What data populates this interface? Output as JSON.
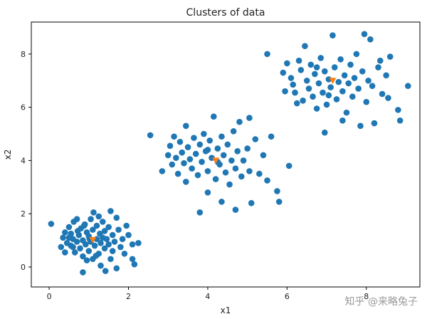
{
  "chart_data": {
    "type": "scatter",
    "title": "Clusters of data",
    "xlabel": "x1",
    "ylabel": "x2",
    "xlim": [
      -0.45,
      9.35
    ],
    "ylim": [
      -0.75,
      9.2
    ],
    "xticks": [
      0,
      2,
      4,
      6,
      8
    ],
    "yticks": [
      0,
      2,
      4,
      6,
      8
    ],
    "grid": false,
    "series": [
      {
        "marker": "circle",
        "color": "#1f77b4",
        "points": [
          [
            0.05,
            1.62
          ],
          [
            0.3,
            0.75
          ],
          [
            0.35,
            1.1
          ],
          [
            0.4,
            1.3
          ],
          [
            0.45,
            0.9
          ],
          [
            0.5,
            1.5
          ],
          [
            0.55,
            0.8
          ],
          [
            0.55,
            1.25
          ],
          [
            0.6,
            1.05
          ],
          [
            0.62,
            1.7
          ],
          [
            0.65,
            0.55
          ],
          [
            0.7,
            0.95
          ],
          [
            0.72,
            1.35
          ],
          [
            0.75,
            1.2
          ],
          [
            0.78,
            0.7
          ],
          [
            0.8,
            1.45
          ],
          [
            0.85,
            1.0
          ],
          [
            0.85,
            0.4
          ],
          [
            0.9,
            1.6
          ],
          [
            0.92,
            0.85
          ],
          [
            0.95,
            1.3
          ],
          [
            1.0,
            0.6
          ],
          [
            1.0,
            1.15
          ],
          [
            1.05,
            0.95
          ],
          [
            1.05,
            1.8
          ],
          [
            1.1,
            0.3
          ],
          [
            1.1,
            1.4
          ],
          [
            1.12,
            2.05
          ],
          [
            1.15,
            0.8
          ],
          [
            1.2,
            1.05
          ],
          [
            1.2,
            1.55
          ],
          [
            1.25,
            0.5
          ],
          [
            1.28,
            1.25
          ],
          [
            1.3,
            0.9
          ],
          [
            1.3,
            0.05
          ],
          [
            1.35,
            1.7
          ],
          [
            1.4,
            0.7
          ],
          [
            1.4,
            1.35
          ],
          [
            1.45,
            1.05
          ],
          [
            1.5,
            0.85
          ],
          [
            1.5,
            1.5
          ],
          [
            1.55,
            2.1
          ],
          [
            1.6,
            0.6
          ],
          [
            1.6,
            1.2
          ],
          [
            1.65,
            0.95
          ],
          [
            1.7,
            1.85
          ],
          [
            1.75,
            1.4
          ],
          [
            1.8,
            0.75
          ],
          [
            1.85,
            1.05
          ],
          [
            1.9,
            0.5
          ],
          [
            2.0,
            1.2
          ],
          [
            2.1,
            0.85
          ],
          [
            0.5,
            1.1
          ],
          [
            0.6,
            0.75
          ],
          [
            0.95,
            0.25
          ],
          [
            1.02,
            1.05
          ],
          [
            0.88,
            1.55
          ],
          [
            1.18,
            0.42
          ],
          [
            1.7,
            -0.05
          ],
          [
            1.42,
            -0.15
          ],
          [
            0.85,
            -0.2
          ],
          [
            2.1,
            0.3
          ],
          [
            2.15,
            0.1
          ],
          [
            2.25,
            0.9
          ],
          [
            0.7,
            1.8
          ],
          [
            1.25,
            1.9
          ],
          [
            0.4,
            0.55
          ],
          [
            1.55,
            0.3
          ],
          [
            1.95,
            1.55
          ],
          [
            1.35,
            1.1
          ],
          [
            2.55,
            4.95
          ],
          [
            2.85,
            3.6
          ],
          [
            3.0,
            4.2
          ],
          [
            3.05,
            4.55
          ],
          [
            3.1,
            3.85
          ],
          [
            3.15,
            4.9
          ],
          [
            3.2,
            4.1
          ],
          [
            3.25,
            3.5
          ],
          [
            3.3,
            4.7
          ],
          [
            3.35,
            4.3
          ],
          [
            3.4,
            3.9
          ],
          [
            3.45,
            5.3
          ],
          [
            3.45,
            3.2
          ],
          [
            3.5,
            4.5
          ],
          [
            3.55,
            4.05
          ],
          [
            3.6,
            3.7
          ],
          [
            3.65,
            4.85
          ],
          [
            3.7,
            4.25
          ],
          [
            3.75,
            3.45
          ],
          [
            3.8,
            4.6
          ],
          [
            3.8,
            2.05
          ],
          [
            3.85,
            3.95
          ],
          [
            3.9,
            5.0
          ],
          [
            3.95,
            4.35
          ],
          [
            4.0,
            3.6
          ],
          [
            4.0,
            2.8
          ],
          [
            4.05,
            4.75
          ],
          [
            4.1,
            4.1
          ],
          [
            4.15,
            5.65
          ],
          [
            4.2,
            3.3
          ],
          [
            4.25,
            4.45
          ],
          [
            4.3,
            3.85
          ],
          [
            4.35,
            2.45
          ],
          [
            4.35,
            4.9
          ],
          [
            4.4,
            4.2
          ],
          [
            4.45,
            3.55
          ],
          [
            4.5,
            4.6
          ],
          [
            4.55,
            3.1
          ],
          [
            4.6,
            4.0
          ],
          [
            4.65,
            5.1
          ],
          [
            4.7,
            3.7
          ],
          [
            4.7,
            2.15
          ],
          [
            4.75,
            4.35
          ],
          [
            4.8,
            5.45
          ],
          [
            4.85,
            3.4
          ],
          [
            4.9,
            4.0
          ],
          [
            5.0,
            4.45
          ],
          [
            5.05,
            3.6
          ],
          [
            5.1,
            2.4
          ],
          [
            5.2,
            4.8
          ],
          [
            5.3,
            3.5
          ],
          [
            5.4,
            4.2
          ],
          [
            5.5,
            3.25
          ],
          [
            5.6,
            4.9
          ],
          [
            5.75,
            2.85
          ],
          [
            5.8,
            2.45
          ],
          [
            6.05,
            3.8
          ],
          [
            5.05,
            5.6
          ],
          [
            4.0,
            4.4
          ],
          [
            4.25,
            3.95
          ],
          [
            5.5,
            8.0
          ],
          [
            5.9,
            7.3
          ],
          [
            5.95,
            6.6
          ],
          [
            6.0,
            7.65
          ],
          [
            6.1,
            7.1
          ],
          [
            6.15,
            6.85
          ],
          [
            6.2,
            6.55
          ],
          [
            6.3,
            7.75
          ],
          [
            6.35,
            7.4
          ],
          [
            6.4,
            6.25
          ],
          [
            6.45,
            8.3
          ],
          [
            6.5,
            7.0
          ],
          [
            6.55,
            6.7
          ],
          [
            6.6,
            7.6
          ],
          [
            6.65,
            6.4
          ],
          [
            6.7,
            7.25
          ],
          [
            6.75,
            5.95
          ],
          [
            6.8,
            6.9
          ],
          [
            6.85,
            7.85
          ],
          [
            6.9,
            6.55
          ],
          [
            6.95,
            7.35
          ],
          [
            7.0,
            6.1
          ],
          [
            7.05,
            7.05
          ],
          [
            7.1,
            6.75
          ],
          [
            7.15,
            8.7
          ],
          [
            7.2,
            7.5
          ],
          [
            7.25,
            6.3
          ],
          [
            7.3,
            6.95
          ],
          [
            7.35,
            7.8
          ],
          [
            7.4,
            6.6
          ],
          [
            7.45,
            7.2
          ],
          [
            7.5,
            5.8
          ],
          [
            7.55,
            6.9
          ],
          [
            7.6,
            7.6
          ],
          [
            7.65,
            6.4
          ],
          [
            7.7,
            7.1
          ],
          [
            7.75,
            8.0
          ],
          [
            7.8,
            6.7
          ],
          [
            7.85,
            5.3
          ],
          [
            7.9,
            7.35
          ],
          [
            7.95,
            8.75
          ],
          [
            8.0,
            6.2
          ],
          [
            8.05,
            7.0
          ],
          [
            8.1,
            8.55
          ],
          [
            8.15,
            6.8
          ],
          [
            8.2,
            5.4
          ],
          [
            8.3,
            7.5
          ],
          [
            8.4,
            6.5
          ],
          [
            8.5,
            7.2
          ],
          [
            8.55,
            6.35
          ],
          [
            8.6,
            7.9
          ],
          [
            8.8,
            5.9
          ],
          [
            8.85,
            5.5
          ],
          [
            9.05,
            6.8
          ],
          [
            6.95,
            5.05
          ],
          [
            7.4,
            5.5
          ],
          [
            8.35,
            7.75
          ],
          [
            6.25,
            6.15
          ],
          [
            6.75,
            7.5
          ],
          [
            7.05,
            6.45
          ]
        ]
      },
      {
        "marker": "triangle-down",
        "color": "#ff7f0e",
        "points": [
          [
            1.1,
            1.02
          ],
          [
            4.2,
            4.0
          ],
          [
            7.15,
            7.0
          ]
        ]
      }
    ],
    "watermark": "知乎 @来略兔子"
  },
  "colors": {
    "axis": "#000000",
    "background": "#ffffff"
  }
}
